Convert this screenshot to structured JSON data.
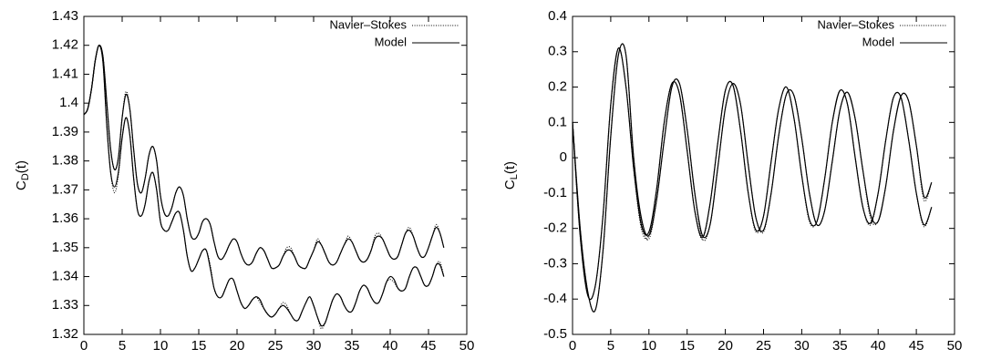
{
  "chart_data": [
    {
      "type": "line",
      "xlabel": "t",
      "ylabel": {
        "main": "C",
        "sub": "D",
        "rest": "(t)"
      },
      "xlim": [
        0,
        50
      ],
      "xticks": [
        0,
        5,
        10,
        15,
        20,
        25,
        30,
        35,
        40,
        45,
        50
      ],
      "ylim": [
        1.32,
        1.43
      ],
      "yticks": [
        1.32,
        1.33,
        1.34,
        1.35,
        1.36,
        1.37,
        1.38,
        1.39,
        1.4,
        1.41,
        1.42,
        1.43
      ],
      "legend": "upper right",
      "x": [
        0,
        0.5,
        1,
        1.5,
        2,
        2.5,
        3,
        3.5,
        4,
        4.5,
        5,
        5.5,
        6,
        6.5,
        7,
        7.5,
        8,
        8.5,
        9,
        9.5,
        10,
        10.5,
        11,
        11.5,
        12,
        12.5,
        13,
        13.5,
        14,
        14.5,
        15,
        15.5,
        16,
        16.5,
        17,
        17.5,
        18,
        18.5,
        19,
        19.5,
        20,
        20.5,
        21,
        21.5,
        22,
        22.5,
        23,
        23.5,
        24,
        24.5,
        25,
        25.5,
        26,
        26.5,
        27,
        27.5,
        28,
        28.5,
        29,
        29.5,
        30,
        30.5,
        31,
        31.5,
        32,
        32.5,
        33,
        33.5,
        34,
        34.5,
        35,
        35.5,
        36,
        36.5,
        37,
        37.5,
        38,
        38.5,
        39,
        39.5,
        40,
        40.5,
        41,
        41.5,
        42,
        42.5,
        43,
        43.5,
        44,
        44.5,
        45,
        45.5,
        46,
        46.5,
        47
      ],
      "series": [
        {
          "name": "Navier–Stokes",
          "color": "#000000",
          "dash": "dotted",
          "values": [
            1.396,
            1.398,
            1.405,
            1.415,
            1.42,
            1.416,
            1.4,
            1.384,
            1.377,
            1.381,
            1.395,
            1.404,
            1.398,
            1.384,
            1.372,
            1.369,
            1.374,
            1.382,
            1.385,
            1.38,
            1.368,
            1.362,
            1.361,
            1.364,
            1.369,
            1.371,
            1.368,
            1.36,
            1.354,
            1.353,
            1.355,
            1.359,
            1.36,
            1.358,
            1.352,
            1.347,
            1.346,
            1.348,
            1.351,
            1.353,
            1.352,
            1.348,
            1.345,
            1.344,
            1.345,
            1.348,
            1.35,
            1.349,
            1.346,
            1.343,
            1.343,
            1.344,
            1.347,
            1.35,
            1.35,
            1.347,
            1.344,
            1.343,
            1.343,
            1.346,
            1.349,
            1.353,
            1.351,
            1.348,
            1.345,
            1.344,
            1.345,
            1.348,
            1.351,
            1.354,
            1.352,
            1.349,
            1.346,
            1.345,
            1.346,
            1.349,
            1.354,
            1.355,
            1.353,
            1.35,
            1.347,
            1.346,
            1.347,
            1.351,
            1.355,
            1.357,
            1.354,
            1.35,
            1.347,
            1.347,
            1.35,
            1.354,
            1.358,
            1.355,
            1.35
          ]
        },
        {
          "name": "Model",
          "color": "#000000",
          "dash": "solid",
          "values": [
            1.396,
            1.398,
            1.405,
            1.415,
            1.42,
            1.416,
            1.4,
            1.384,
            1.377,
            1.381,
            1.395,
            1.403,
            1.398,
            1.384,
            1.372,
            1.369,
            1.374,
            1.382,
            1.385,
            1.38,
            1.368,
            1.362,
            1.361,
            1.364,
            1.369,
            1.371,
            1.368,
            1.36,
            1.354,
            1.353,
            1.355,
            1.359,
            1.36,
            1.358,
            1.352,
            1.347,
            1.346,
            1.348,
            1.351,
            1.353,
            1.352,
            1.348,
            1.345,
            1.344,
            1.345,
            1.348,
            1.35,
            1.349,
            1.346,
            1.343,
            1.343,
            1.344,
            1.347,
            1.349,
            1.349,
            1.347,
            1.344,
            1.343,
            1.343,
            1.346,
            1.349,
            1.352,
            1.351,
            1.348,
            1.345,
            1.344,
            1.345,
            1.348,
            1.351,
            1.353,
            1.352,
            1.349,
            1.346,
            1.345,
            1.346,
            1.349,
            1.353,
            1.354,
            1.353,
            1.35,
            1.347,
            1.346,
            1.347,
            1.351,
            1.355,
            1.356,
            1.354,
            1.35,
            1.347,
            1.347,
            1.35,
            1.354,
            1.357,
            1.355,
            1.35
          ]
        },
        {
          "color": "#000000",
          "dash": "dotted",
          "values": [
            1.396,
            1.398,
            1.405,
            1.415,
            1.42,
            1.414,
            1.392,
            1.376,
            1.369,
            1.375,
            1.388,
            1.395,
            1.389,
            1.374,
            1.363,
            1.361,
            1.365,
            1.373,
            1.376,
            1.37,
            1.359,
            1.356,
            1.356,
            1.359,
            1.362,
            1.362,
            1.356,
            1.347,
            1.342,
            1.343,
            1.346,
            1.349,
            1.349,
            1.344,
            1.336,
            1.333,
            1.333,
            1.336,
            1.339,
            1.339,
            1.335,
            1.331,
            1.329,
            1.33,
            1.332,
            1.333,
            1.331,
            1.329,
            1.327,
            1.326,
            1.327,
            1.329,
            1.331,
            1.33,
            1.327,
            1.325,
            1.325,
            1.328,
            1.331,
            1.333,
            1.33,
            1.326,
            1.322,
            1.324,
            1.328,
            1.332,
            1.334,
            1.333,
            1.33,
            1.328,
            1.328,
            1.331,
            1.335,
            1.337,
            1.336,
            1.333,
            1.331,
            1.331,
            1.334,
            1.338,
            1.339,
            1.338,
            1.336,
            1.335,
            1.336,
            1.34,
            1.343,
            1.343,
            1.34,
            1.337,
            1.337,
            1.34,
            1.344,
            1.345,
            1.34
          ]
        },
        {
          "color": "#000000",
          "dash": "solid",
          "values": [
            1.396,
            1.398,
            1.405,
            1.415,
            1.42,
            1.414,
            1.392,
            1.376,
            1.371,
            1.376,
            1.388,
            1.395,
            1.389,
            1.374,
            1.363,
            1.361,
            1.365,
            1.373,
            1.376,
            1.37,
            1.359,
            1.356,
            1.356,
            1.359,
            1.362,
            1.362,
            1.356,
            1.347,
            1.342,
            1.343,
            1.346,
            1.349,
            1.349,
            1.343,
            1.336,
            1.333,
            1.333,
            1.336,
            1.339,
            1.339,
            1.335,
            1.331,
            1.329,
            1.33,
            1.332,
            1.333,
            1.332,
            1.329,
            1.327,
            1.326,
            1.327,
            1.329,
            1.33,
            1.329,
            1.327,
            1.325,
            1.325,
            1.328,
            1.331,
            1.333,
            1.33,
            1.326,
            1.323,
            1.324,
            1.328,
            1.332,
            1.334,
            1.333,
            1.33,
            1.328,
            1.328,
            1.331,
            1.335,
            1.337,
            1.336,
            1.333,
            1.331,
            1.331,
            1.334,
            1.338,
            1.34,
            1.339,
            1.336,
            1.335,
            1.336,
            1.34,
            1.343,
            1.343,
            1.34,
            1.337,
            1.337,
            1.34,
            1.344,
            1.344,
            1.34
          ]
        }
      ]
    },
    {
      "type": "line",
      "xlabel": "t",
      "ylabel": {
        "main": "C",
        "sub": "L",
        "rest": "(t)"
      },
      "xlim": [
        0,
        50
      ],
      "xticks": [
        0,
        5,
        10,
        15,
        20,
        25,
        30,
        35,
        40,
        45,
        50
      ],
      "ylim": [
        -0.5,
        0.4
      ],
      "yticks": [
        -0.5,
        -0.4,
        -0.3,
        -0.2,
        -0.1,
        0,
        0.1,
        0.2,
        0.3,
        0.4
      ],
      "legend": "upper right",
      "x": [
        0,
        1,
        2,
        3,
        4,
        5,
        6,
        7,
        8,
        9,
        10,
        11,
        12,
        13,
        14,
        15,
        16,
        17,
        18,
        19,
        20,
        21,
        22,
        23,
        24,
        25,
        26,
        27,
        28,
        29,
        30,
        31,
        32,
        33,
        34,
        35,
        36,
        37,
        38,
        39,
        40,
        41,
        42,
        43,
        44,
        45,
        46,
        47
      ],
      "series": [
        {
          "name": "Navier–Stokes",
          "color": "#000000",
          "dash": "dotted",
          "values": [
            0.1,
            -0.22,
            -0.39,
            -0.36,
            -0.16,
            0.15,
            0.31,
            0.2,
            -0.03,
            -0.2,
            -0.22,
            -0.09,
            0.1,
            0.21,
            0.18,
            0.02,
            -0.15,
            -0.23,
            -0.13,
            0.04,
            0.19,
            0.205,
            0.075,
            -0.1,
            -0.21,
            -0.165,
            -0.01,
            0.14,
            0.2,
            0.11,
            -0.05,
            -0.18,
            -0.18,
            -0.06,
            0.1,
            0.19,
            0.15,
            0,
            -0.14,
            -0.19,
            -0.1,
            0.05,
            0.17,
            0.17,
            0.05,
            -0.1,
            -0.195,
            -0.14
          ]
        },
        {
          "name": "Model",
          "color": "#000000",
          "dash": "solid",
          "values": [
            0.1,
            -0.22,
            -0.39,
            -0.36,
            -0.16,
            0.15,
            0.31,
            0.2,
            -0.03,
            -0.19,
            -0.21,
            -0.09,
            0.1,
            0.21,
            0.18,
            0.02,
            -0.15,
            -0.225,
            -0.13,
            0.04,
            0.19,
            0.205,
            0.075,
            -0.1,
            -0.205,
            -0.165,
            -0.01,
            0.14,
            0.2,
            0.11,
            -0.05,
            -0.175,
            -0.18,
            -0.06,
            0.1,
            0.19,
            0.15,
            0,
            -0.14,
            -0.185,
            -0.1,
            0.05,
            0.17,
            0.17,
            0.05,
            -0.1,
            -0.19,
            -0.14
          ]
        },
        {
          "color": "#000000",
          "dash": "dotted",
          "values": [
            0.1,
            -0.2,
            -0.38,
            -0.43,
            -0.26,
            0.06,
            0.29,
            0.29,
            0,
            -0.18,
            -0.23,
            -0.12,
            0.05,
            0.2,
            0.21,
            0.08,
            -0.1,
            -0.23,
            -0.19,
            -0.03,
            0.14,
            0.21,
            0.15,
            -0.02,
            -0.17,
            -0.21,
            -0.1,
            0.065,
            0.18,
            0.175,
            0.055,
            -0.1,
            -0.19,
            -0.15,
            -0.01,
            0.135,
            0.185,
            0.11,
            -0.035,
            -0.17,
            -0.18,
            -0.08,
            0.075,
            0.175,
            0.16,
            0.035,
            -0.12,
            -0.07
          ]
        },
        {
          "color": "#000000",
          "dash": "solid",
          "values": [
            0.1,
            -0.2,
            -0.38,
            -0.43,
            -0.26,
            0.06,
            0.29,
            0.29,
            0,
            -0.17,
            -0.22,
            -0.12,
            0.05,
            0.2,
            0.21,
            0.08,
            -0.1,
            -0.22,
            -0.19,
            -0.03,
            0.14,
            0.21,
            0.15,
            -0.02,
            -0.17,
            -0.205,
            -0.1,
            0.065,
            0.18,
            0.175,
            0.055,
            -0.1,
            -0.19,
            -0.15,
            -0.01,
            0.135,
            0.185,
            0.11,
            -0.035,
            -0.16,
            -0.18,
            -0.08,
            0.075,
            0.175,
            0.16,
            0.035,
            -0.11,
            -0.07
          ]
        }
      ]
    }
  ]
}
